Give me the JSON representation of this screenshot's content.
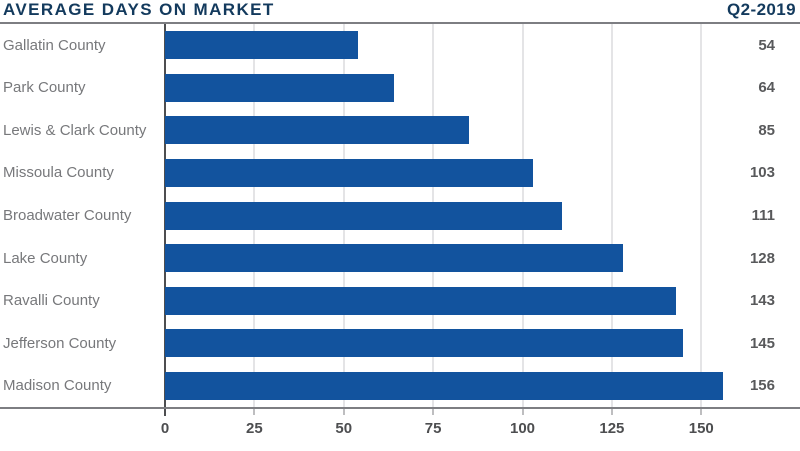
{
  "header": {
    "title": "AVERAGE DAYS ON MARKET",
    "period": "Q2-2019"
  },
  "chart_data": {
    "type": "bar",
    "orientation": "horizontal",
    "title": "AVERAGE DAYS ON MARKET",
    "subtitle": "Q2-2019",
    "categories": [
      "Gallatin County",
      "Park County",
      "Lewis & Clark County",
      "Missoula County",
      "Broadwater County",
      "Lake County",
      "Ravalli County",
      "Jefferson County",
      "Madison County"
    ],
    "values": [
      54,
      64,
      85,
      103,
      111,
      128,
      143,
      145,
      156
    ],
    "value_labels": [
      "54",
      "64",
      "85",
      "103",
      "111",
      "128",
      "143",
      "145",
      "156"
    ],
    "xticks": [
      0,
      25,
      50,
      75,
      100,
      125,
      150
    ],
    "xlim": [
      0,
      160
    ],
    "xlabel": "",
    "ylabel": "",
    "grid": "vertical-gridlines-on",
    "legend": "none",
    "colors": {
      "bar": "#12539e",
      "title": "#133a5d",
      "category_label": "#77787b",
      "value_label": "#58595b",
      "axis": "#7d7e82",
      "gridline": "#c9cacc",
      "background": "#ffffff"
    }
  }
}
